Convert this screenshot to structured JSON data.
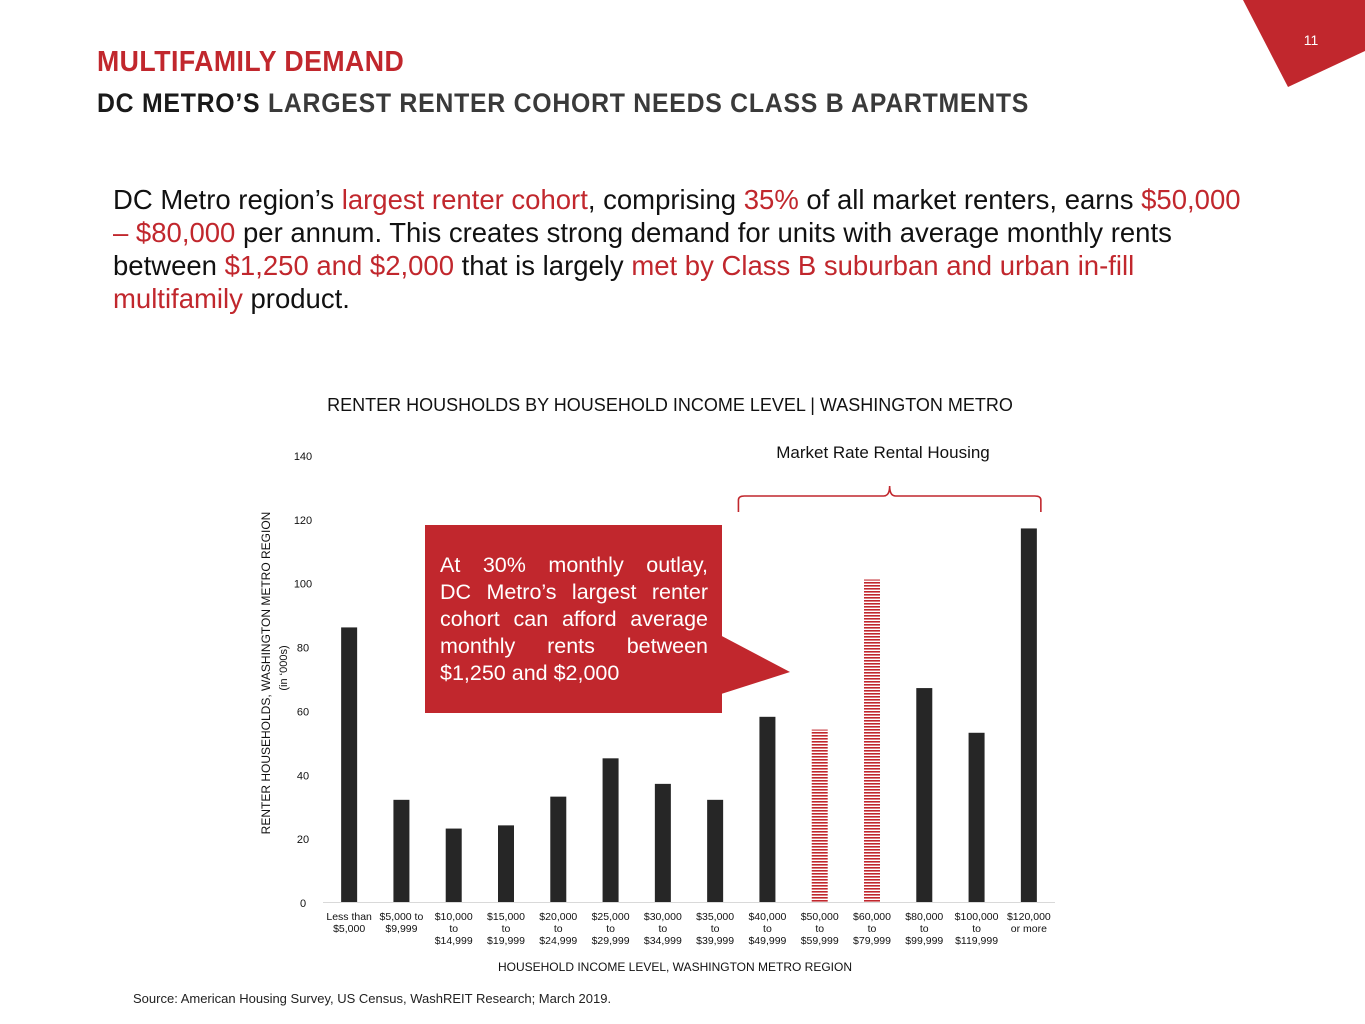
{
  "page_number": "11",
  "header": {
    "title": "MULTIFAMILY DEMAND",
    "subtitle_part1": "DC METRO’S",
    "subtitle_part2": " LARGEST RENTER COHORT NEEDS CLASS B APARTMENTS"
  },
  "intro": [
    {
      "text": "DC Metro region’s ",
      "hl": false
    },
    {
      "text": "largest renter cohort",
      "hl": true
    },
    {
      "text": ", comprising ",
      "hl": false
    },
    {
      "text": "35%",
      "hl": true
    },
    {
      "text": " of all market renters, earns ",
      "hl": false
    },
    {
      "text": "$50,000 – $80,000",
      "hl": true
    },
    {
      "text": " per annum. This creates strong demand for units with average monthly rents between ",
      "hl": false
    },
    {
      "text": "$1,250 and $2,000",
      "hl": true
    },
    {
      "text": " that is largely ",
      "hl": false
    },
    {
      "text": "met by Class B suburban and urban in-fill multifamily",
      "hl": true
    },
    {
      "text": " product.",
      "hl": false
    }
  ],
  "callout": {
    "lines": [
      "At 30% monthly outlay,",
      "DC Metro’s largest renter",
      "cohort can afford average",
      "monthly rents between",
      "$1,250 and $2,000"
    ]
  },
  "bracket_label": "Market Rate Rental Housing",
  "source": "Source: American Housing Survey, US Census, WashREIT Research; March 2019.",
  "colors": {
    "accent": "#c1272d",
    "bar": "#262626",
    "title_gray": "#3a3a3a"
  },
  "chart_data": {
    "type": "bar",
    "title": "RENTER HOUSHOLDS BY HOUSEHOLD INCOME LEVEL | WASHINGTON METRO",
    "ylabel": "RENTER HOUSEHOLDS, WASHINGTON METRO REGION",
    "ylabel_units": "(in ‘000s)",
    "xlabel": "HOUSEHOLD INCOME LEVEL, WASHINGTON METRO REGION",
    "ylim": [
      0,
      140
    ],
    "yticks": [
      0,
      20,
      40,
      60,
      80,
      100,
      120,
      140
    ],
    "grid": false,
    "categories": [
      [
        "Less than",
        "$5,000"
      ],
      [
        "$5,000 to",
        "$9,999"
      ],
      [
        "$10,000",
        "to",
        "$14,999"
      ],
      [
        "$15,000",
        "to",
        "$19,999"
      ],
      [
        "$20,000",
        "to",
        "$24,999"
      ],
      [
        "$25,000",
        "to",
        "$29,999"
      ],
      [
        "$30,000",
        "to",
        "$34,999"
      ],
      [
        "$35,000",
        "to",
        "$39,999"
      ],
      [
        "$40,000",
        "to",
        "$49,999"
      ],
      [
        "$50,000",
        "to",
        "$59,999"
      ],
      [
        "$60,000",
        "to",
        "$79,999"
      ],
      [
        "$80,000",
        "to",
        "$99,999"
      ],
      [
        "$100,000",
        "to",
        "$119,999"
      ],
      [
        "$120,000",
        "or more"
      ]
    ],
    "values": [
      86,
      32,
      23,
      24,
      33,
      45,
      37,
      32,
      58,
      54,
      101,
      67,
      53,
      117
    ],
    "highlighted_categories": [
      9,
      10
    ],
    "bracket_categories": [
      8,
      13
    ]
  }
}
